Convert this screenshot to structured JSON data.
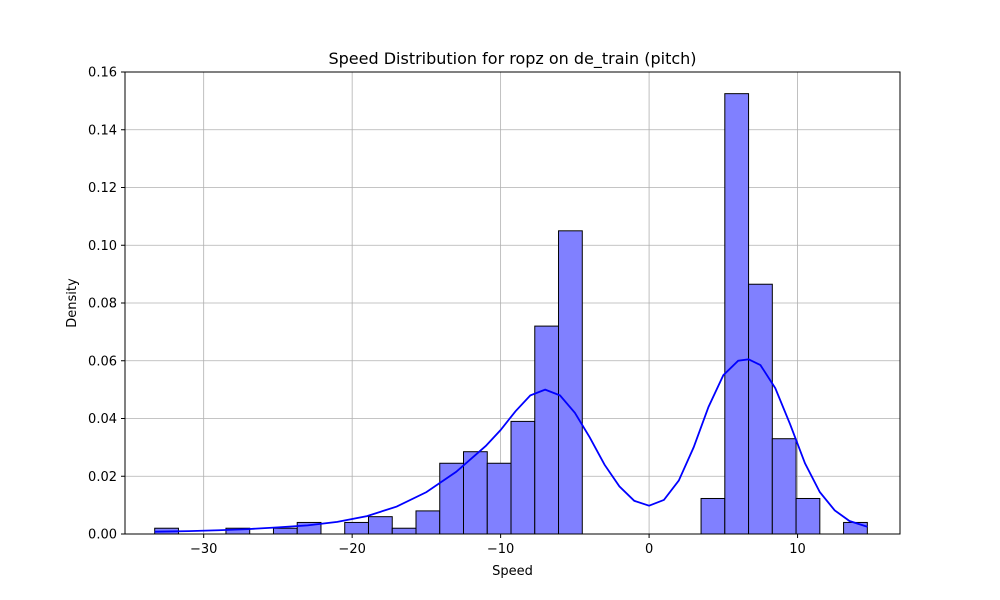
{
  "chart_data": {
    "type": "histogram",
    "title": "Speed Distribution for ropz on de_train (pitch)",
    "xlabel": "Speed",
    "ylabel": "Density",
    "xlim": [
      -35.3,
      16.9
    ],
    "ylim": [
      0,
      0.16
    ],
    "x_ticks": [
      {
        "value": -30,
        "label": "−30"
      },
      {
        "value": -20,
        "label": "−20"
      },
      {
        "value": -10,
        "label": "−10"
      },
      {
        "value": 0,
        "label": "0"
      },
      {
        "value": 10,
        "label": "10"
      }
    ],
    "y_ticks": [
      {
        "value": 0,
        "label": "0.00"
      },
      {
        "value": 0.02,
        "label": "0.02"
      },
      {
        "value": 0.04,
        "label": "0.04"
      },
      {
        "value": 0.06,
        "label": "0.06"
      },
      {
        "value": 0.08,
        "label": "0.08"
      },
      {
        "value": 0.1,
        "label": "0.10"
      },
      {
        "value": 0.12,
        "label": "0.12"
      },
      {
        "value": 0.14,
        "label": "0.14"
      },
      {
        "value": 0.16,
        "label": "0.16"
      }
    ],
    "grid": true,
    "bar_color": "#8080ff",
    "bar_edge_color": "#000000",
    "kde_color": "#0000ff",
    "bins": [
      {
        "x0": -33.3,
        "x1": -31.7,
        "density": 0.002
      },
      {
        "x0": -31.7,
        "x1": -30.1,
        "density": 0
      },
      {
        "x0": -30.1,
        "x1": -28.5,
        "density": 0
      },
      {
        "x0": -28.5,
        "x1": -26.9,
        "density": 0.002
      },
      {
        "x0": -26.9,
        "x1": -25.3,
        "density": 0
      },
      {
        "x0": -25.3,
        "x1": -23.7,
        "density": 0.002
      },
      {
        "x0": -23.7,
        "x1": -22.1,
        "density": 0.004
      },
      {
        "x0": -22.1,
        "x1": -20.5,
        "density": 0
      },
      {
        "x0": -20.5,
        "x1": -18.9,
        "density": 0.004
      },
      {
        "x0": -18.9,
        "x1": -17.3,
        "density": 0.006
      },
      {
        "x0": -17.3,
        "x1": -15.7,
        "density": 0.002
      },
      {
        "x0": -15.7,
        "x1": -14.1,
        "density": 0.008
      },
      {
        "x0": -14.1,
        "x1": -12.5,
        "density": 0.0245
      },
      {
        "x0": -12.5,
        "x1": -10.9,
        "density": 0.0285
      },
      {
        "x0": -10.9,
        "x1": -9.3,
        "density": 0.0245
      },
      {
        "x0": -9.3,
        "x1": -7.7,
        "density": 0.039
      },
      {
        "x0": -7.7,
        "x1": -6.1,
        "density": 0.072
      },
      {
        "x0": -6.1,
        "x1": -4.5,
        "density": 0.105
      },
      {
        "x0": 3.5,
        "x1": 5.1,
        "density": 0.0123
      },
      {
        "x0": 5.1,
        "x1": 6.7,
        "density": 0.1525
      },
      {
        "x0": 6.7,
        "x1": 8.3,
        "density": 0.0865
      },
      {
        "x0": 8.3,
        "x1": 9.9,
        "density": 0.033
      },
      {
        "x0": 9.9,
        "x1": 11.5,
        "density": 0.0123
      },
      {
        "x0": 13.1,
        "x1": 14.7,
        "density": 0.004
      }
    ],
    "kde": {
      "x": [
        -33.3,
        -31,
        -29,
        -27,
        -25,
        -23,
        -21,
        -19,
        -17,
        -15,
        -13,
        -11,
        -10,
        -9,
        -8,
        -7,
        -6,
        -5,
        -4,
        -3,
        -2,
        -1,
        0,
        1,
        2,
        3,
        4,
        5,
        6,
        6.7,
        7.5,
        8.5,
        9.5,
        10.5,
        11.5,
        12.5,
        13.5,
        14.7
      ],
      "y": [
        0.0008,
        0.001,
        0.0013,
        0.0017,
        0.0023,
        0.003,
        0.0042,
        0.0062,
        0.0095,
        0.0145,
        0.0215,
        0.0305,
        0.036,
        0.0425,
        0.048,
        0.05,
        0.048,
        0.042,
        0.0335,
        0.024,
        0.0165,
        0.0115,
        0.0098,
        0.0118,
        0.0185,
        0.03,
        0.044,
        0.055,
        0.06,
        0.0605,
        0.0585,
        0.0505,
        0.038,
        0.0245,
        0.0145,
        0.0082,
        0.0045,
        0.0025
      ]
    }
  }
}
